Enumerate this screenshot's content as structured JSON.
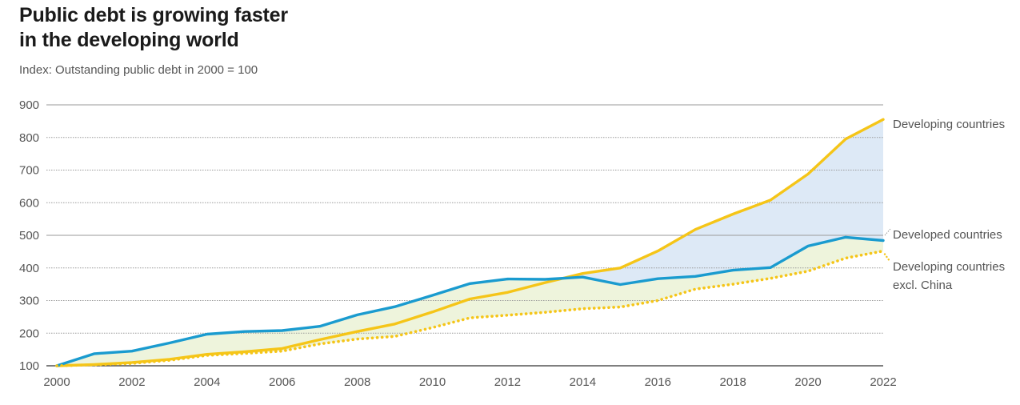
{
  "chart_data": {
    "type": "line",
    "title_line1": "Public debt is growing faster",
    "title_line2": "in the developing world",
    "subtitle": "Index: Outstanding public debt in 2000 = 100",
    "x": [
      2000,
      2001,
      2002,
      2003,
      2004,
      2005,
      2006,
      2007,
      2008,
      2009,
      2010,
      2011,
      2012,
      2013,
      2014,
      2015,
      2016,
      2017,
      2018,
      2019,
      2020,
      2021,
      2022
    ],
    "xticks": [
      2000,
      2002,
      2004,
      2006,
      2008,
      2010,
      2012,
      2014,
      2016,
      2018,
      2020,
      2022
    ],
    "xtick_labels": [
      "2000",
      "2002",
      "2004",
      "2006",
      "2008",
      "2010",
      "2012",
      "2014",
      "2016",
      "2018",
      "2020",
      "2022"
    ],
    "yticks": [
      100,
      200,
      300,
      400,
      500,
      600,
      700,
      800,
      900
    ],
    "ytick_labels": [
      "100",
      "200",
      "300",
      "400",
      "500",
      "600",
      "700",
      "800",
      "900"
    ],
    "ylim": [
      100,
      900
    ],
    "xlim": [
      2000,
      2022
    ],
    "series": [
      {
        "name": "Developing countries",
        "label": "Developing countries",
        "color": "#f5c518",
        "style": "solid",
        "values": [
          100,
          104,
          110,
          120,
          135,
          143,
          153,
          180,
          205,
          228,
          265,
          305,
          325,
          355,
          383,
          400,
          452,
          518,
          565,
          608,
          688,
          795,
          855
        ]
      },
      {
        "name": "Developed countries",
        "label": "Developed countries",
        "color": "#1a9bcf",
        "style": "solid",
        "values": [
          100,
          137,
          145,
          170,
          197,
          205,
          208,
          221,
          256,
          281,
          316,
          352,
          366,
          365,
          372,
          349,
          367,
          374,
          393,
          401,
          467,
          494,
          484
        ]
      },
      {
        "name": "Developing countries excl. China",
        "label_line1": "Developing countries",
        "label_line2": "excl. China",
        "color": "#f5c518",
        "style": "dotted",
        "values": [
          100,
          103,
          107,
          117,
          132,
          138,
          145,
          167,
          182,
          190,
          217,
          247,
          255,
          264,
          275,
          280,
          300,
          335,
          350,
          368,
          390,
          430,
          452
        ]
      }
    ],
    "colors": {
      "area_upper": "#dde9f6",
      "area_lower": "#eef4dc",
      "grid": "#9a9a9a",
      "axis": "#333333",
      "text": "#555555"
    }
  }
}
